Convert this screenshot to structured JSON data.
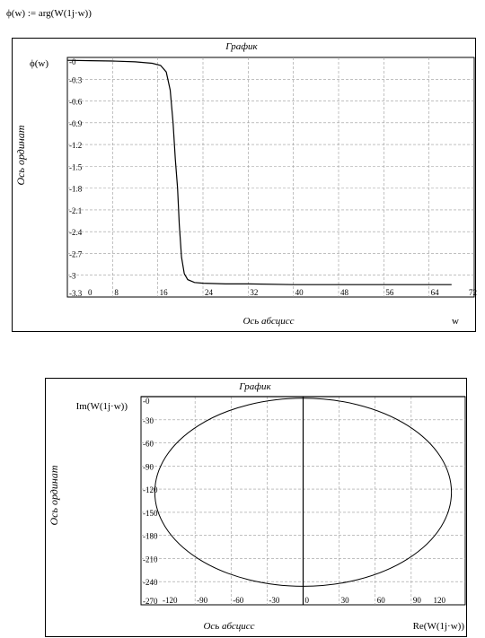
{
  "formula": {
    "lhs": "ϕ(w)",
    "assign": ":=",
    "rhs": "arg(W(1j·w))"
  },
  "chart_data": [
    {
      "type": "line",
      "title": "График",
      "ylabel": "Ось ординат",
      "xlabel": "Ось абсцисс",
      "y_expr": "ϕ(w)",
      "x_expr": "w",
      "xlim": [
        0,
        72
      ],
      "ylim": [
        -3.3,
        0
      ],
      "x_ticks": [
        0,
        8,
        16,
        24,
        32,
        40,
        48,
        56,
        64,
        72
      ],
      "x_tick_labels": [
        "0",
        "8",
        "16",
        "24",
        "32",
        "40",
        "48",
        "56",
        "64",
        "72"
      ],
      "y_ticks": [
        0,
        -0.3,
        -0.6,
        -0.9,
        -1.2,
        -1.5,
        -1.8,
        -2.1,
        -2.4,
        -2.7,
        -3,
        -3.3
      ],
      "y_tick_labels": [
        "-0",
        "-0.3",
        "-0.6",
        "-0.9",
        "-1.2",
        "-1.5",
        "-1.8",
        "-2.1",
        "-2.4",
        "-2.7",
        "-3",
        "-3.3"
      ],
      "grid": true,
      "series": [
        {
          "color": "#000000",
          "x": [
            0,
            4,
            8,
            12,
            15,
            16.5,
            17.5,
            18.2,
            18.7,
            19.1,
            19.5,
            19.8,
            20.2,
            20.7,
            21.3,
            22.5,
            24,
            28,
            32,
            40,
            56,
            68
          ],
          "y": [
            -0.04,
            -0.045,
            -0.05,
            -0.06,
            -0.08,
            -0.11,
            -0.2,
            -0.45,
            -0.9,
            -1.4,
            -1.8,
            -2.3,
            -2.75,
            -2.98,
            -3.06,
            -3.1,
            -3.11,
            -3.12,
            -3.12,
            -3.13,
            -3.13,
            -3.13
          ]
        }
      ]
    },
    {
      "type": "line",
      "title": "График",
      "ylabel": "Ось ординат",
      "xlabel": "Ось абсцисс",
      "y_expr": "Im(W(1j·w))",
      "x_expr": "Re(W(1j·w))",
      "xlim": [
        -135,
        135
      ],
      "ylim": [
        -270,
        0
      ],
      "x_ticks": [
        -120,
        -90,
        -60,
        -30,
        0,
        30,
        60,
        90,
        120
      ],
      "x_tick_labels": [
        "-120",
        "-90",
        "-60",
        "-30",
        "0",
        "30",
        "60",
        "90",
        "120"
      ],
      "y_ticks": [
        0,
        -30,
        -60,
        -90,
        -120,
        -150,
        -180,
        -210,
        -240,
        -270
      ],
      "y_tick_labels": [
        "-0",
        "-30",
        "-60",
        "-90",
        "-120",
        "-150",
        "-180",
        "-210",
        "-240",
        "-270"
      ],
      "grid": true,
      "series": [
        {
          "color": "#000000",
          "shape": "ellipse",
          "center": [
            0,
            -124
          ],
          "radius_x": 123.5,
          "radius_y": 122
        }
      ]
    }
  ]
}
